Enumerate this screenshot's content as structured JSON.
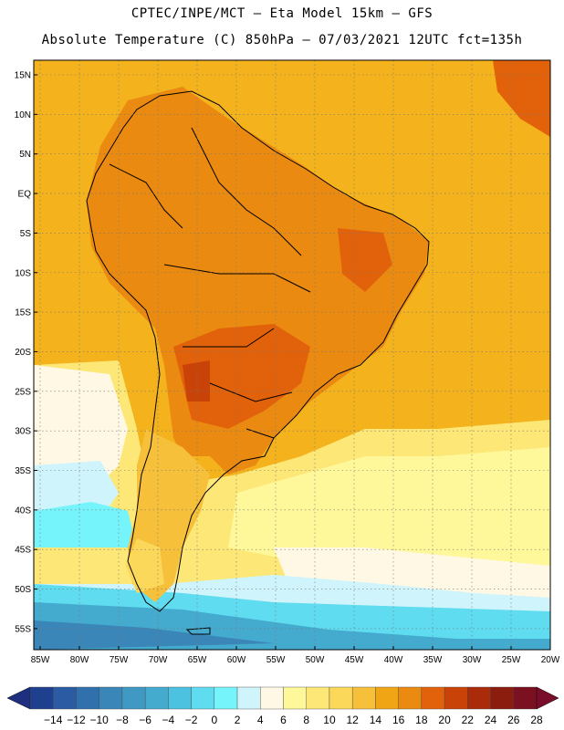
{
  "header": {
    "line1": "CPTEC/INPE/MCT –   Eta Model 15km – GFS",
    "line2": "Absolute Temperature (C) 850hPa – 07/03/2021 12UTC fct=135h"
  },
  "map": {
    "region": "South America",
    "variable": "Absolute Temperature",
    "units": "C",
    "level": "850hPa",
    "lat_labels": [
      "15N",
      "10N",
      "5N",
      "EQ",
      "5S",
      "10S",
      "15S",
      "20S",
      "25S",
      "30S",
      "35S",
      "40S",
      "45S",
      "50S",
      "55S"
    ],
    "lon_labels": [
      "85W",
      "80W",
      "75W",
      "70W",
      "65W",
      "60W",
      "55W",
      "50W",
      "45W",
      "40W",
      "35W",
      "30W",
      "25W",
      "20W"
    ]
  },
  "colorbar": {
    "labels": [
      "-14",
      "-12",
      "-10",
      "-8",
      "-6",
      "-4",
      "-2",
      "0",
      "2",
      "4",
      "6",
      "8",
      "10",
      "12",
      "14",
      "16",
      "18",
      "20",
      "22",
      "24",
      "26",
      "28"
    ],
    "colors": [
      "#1f3f8f",
      "#2a5ba3",
      "#3071ad",
      "#3a86b8",
      "#3f99c3",
      "#44abcf",
      "#4cc1e0",
      "#5fdcf0",
      "#76f4fb",
      "#cff4fb",
      "#fff8e4",
      "#fff89a",
      "#fde776",
      "#fbd75a",
      "#f6c03a",
      "#f0a514",
      "#ea8a10",
      "#e2620b",
      "#c94208",
      "#aa2b0a",
      "#8a1d0e",
      "#7a1020"
    ],
    "low_end_color": "#1e2f80",
    "high_end_color": "#7a0d2a"
  },
  "palette": {
    "ocean_warm": "#f4b21d",
    "land_hot": "#ea8a10",
    "land_hottest": "#e2620b",
    "cool_band": "#fde776",
    "cold_band": "#4cc1e0"
  }
}
